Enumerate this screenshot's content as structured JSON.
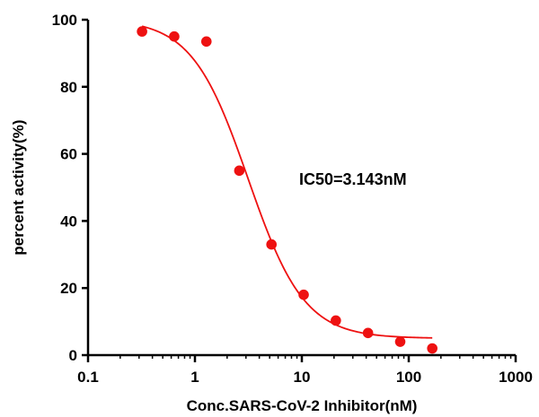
{
  "chart_data": {
    "type": "scatter",
    "x_scale": "log",
    "xlim": [
      0.1,
      1000
    ],
    "ylim": [
      0,
      100
    ],
    "x_ticks": [
      0.1,
      1,
      10,
      100,
      1000
    ],
    "x_tick_labels": [
      "0.1",
      "1",
      "10",
      "100",
      "1000"
    ],
    "y_ticks": [
      0,
      20,
      40,
      60,
      80,
      100
    ],
    "y_tick_labels": [
      "0",
      "20",
      "40",
      "60",
      "80",
      "100"
    ],
    "xlabel": "Conc.SARS-CoV-2 Inhibitor(nM)",
    "ylabel": "percent activity(%)",
    "annotation": "IC50=3.143nM",
    "grid": false,
    "series": [
      {
        "points": [
          {
            "x": 0.32,
            "y": 96.5
          },
          {
            "x": 0.64,
            "y": 95
          },
          {
            "x": 1.28,
            "y": 93.5
          },
          {
            "x": 2.6,
            "y": 55
          },
          {
            "x": 5.2,
            "y": 33
          },
          {
            "x": 10.4,
            "y": 18
          },
          {
            "x": 20.8,
            "y": 10.3
          },
          {
            "x": 41.6,
            "y": 6.6
          },
          {
            "x": 83.2,
            "y": 4
          },
          {
            "x": 166,
            "y": 2
          }
        ],
        "color": "#ee1111"
      }
    ],
    "fit_curve": {
      "model": "sigmoid",
      "top": 100.2,
      "bottom": 5.0,
      "ic50": 3.143,
      "hill_slope": 1.65,
      "x_range": [
        0.32,
        166
      ],
      "color": "#ee1111"
    }
  }
}
